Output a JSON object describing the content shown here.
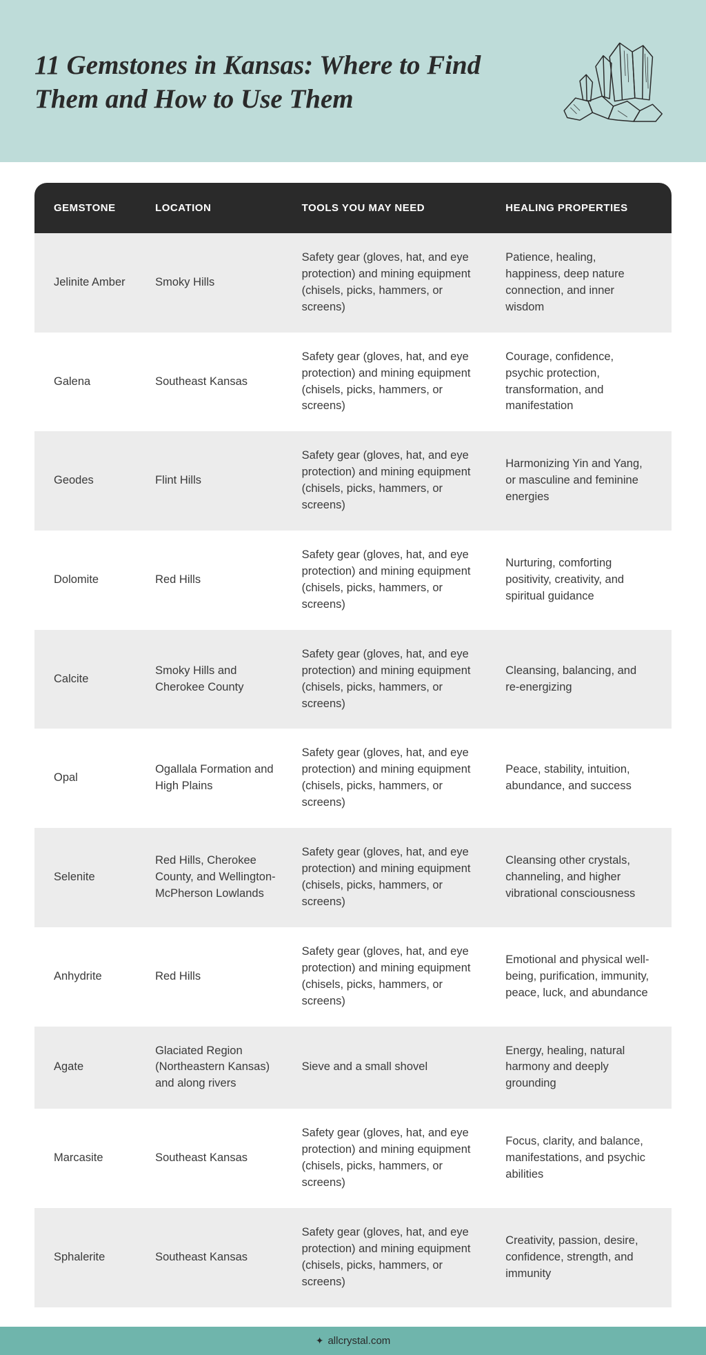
{
  "header": {
    "title": "11 Gemstones in Kansas: Where to Find Them and How to Use Them"
  },
  "table": {
    "columns": [
      "GEMSTONE",
      "LOCATION",
      "TOOLS YOU MAY NEED",
      "HEALING PROPERTIES"
    ],
    "rows": [
      {
        "gemstone": "Jelinite Amber",
        "location": "Smoky Hills",
        "tools": "Safety gear (gloves, hat, and eye protection) and mining equipment (chisels, picks, hammers, or screens)",
        "healing": "Patience, healing, happiness, deep nature connection, and inner wisdom"
      },
      {
        "gemstone": "Galena",
        "location": "Southeast Kansas",
        "tools": "Safety gear (gloves, hat, and eye protection) and mining equipment (chisels, picks, hammers, or screens)",
        "healing": "Courage, confidence, psychic protection, transformation, and manifestation"
      },
      {
        "gemstone": "Geodes",
        "location": "Flint Hills",
        "tools": "Safety gear (gloves, hat, and eye protection) and mining equipment (chisels, picks, hammers, or screens)",
        "healing": "Harmonizing Yin and Yang, or masculine and feminine energies"
      },
      {
        "gemstone": "Dolomite",
        "location": "Red Hills",
        "tools": "Safety gear (gloves, hat, and eye protection) and mining equipment (chisels, picks, hammers, or screens)",
        "healing": "Nurturing, comforting positivity, creativity, and spiritual guidance"
      },
      {
        "gemstone": "Calcite",
        "location": "Smoky Hills and Cherokee County",
        "tools": "Safety gear (gloves, hat, and eye protection) and mining equipment (chisels, picks, hammers, or screens)",
        "healing": "Cleansing, balancing, and re-energizing"
      },
      {
        "gemstone": "Opal",
        "location": "Ogallala Formation and High Plains",
        "tools": "Safety gear (gloves, hat, and eye protection) and mining equipment (chisels, picks, hammers, or screens)",
        "healing": "Peace, stability, intuition, abundance, and success"
      },
      {
        "gemstone": "Selenite",
        "location": "Red Hills, Cherokee County, and Wellington-McPherson Lowlands",
        "tools": "Safety gear (gloves, hat, and eye protection) and mining equipment (chisels, picks, hammers, or screens)",
        "healing": "Cleansing other crystals, channeling, and higher vibrational consciousness"
      },
      {
        "gemstone": "Anhydrite",
        "location": "Red Hills",
        "tools": "Safety gear (gloves, hat, and eye protection) and mining equipment (chisels, picks, hammers, or screens)",
        "healing": "Emotional and physical well-being, purification, immunity, peace, luck, and abundance"
      },
      {
        "gemstone": "Agate",
        "location": "Glaciated Region (Northeastern Kansas) and along rivers",
        "tools": "Sieve and a small shovel",
        "healing": "Energy, healing, natural harmony and deeply grounding"
      },
      {
        "gemstone": "Marcasite",
        "location": "Southeast Kansas",
        "tools": "Safety gear (gloves, hat, and eye protection) and mining equipment (chisels, picks, hammers, or screens)",
        "healing": "Focus, clarity, and balance, manifestations, and psychic abilities"
      },
      {
        "gemstone": "Sphalerite",
        "location": "Southeast Kansas",
        "tools": "Safety gear (gloves, hat, and eye protection) and mining equipment (chisels, picks, hammers, or screens)",
        "healing": "Creativity, passion, desire, confidence, strength, and immunity"
      }
    ]
  },
  "footer": {
    "text": "allcrystal.com"
  },
  "style": {
    "header_bg": "#bedcd9",
    "table_header_bg": "#2a2a2a",
    "row_odd_bg": "#ececec",
    "row_even_bg": "#ffffff",
    "footer_bg": "#6fb5ac",
    "title_color": "#2a2a2a",
    "body_text_color": "#3a3a3a",
    "title_fontsize": 39,
    "body_fontsize": 16.5,
    "header_fontsize": 15
  }
}
